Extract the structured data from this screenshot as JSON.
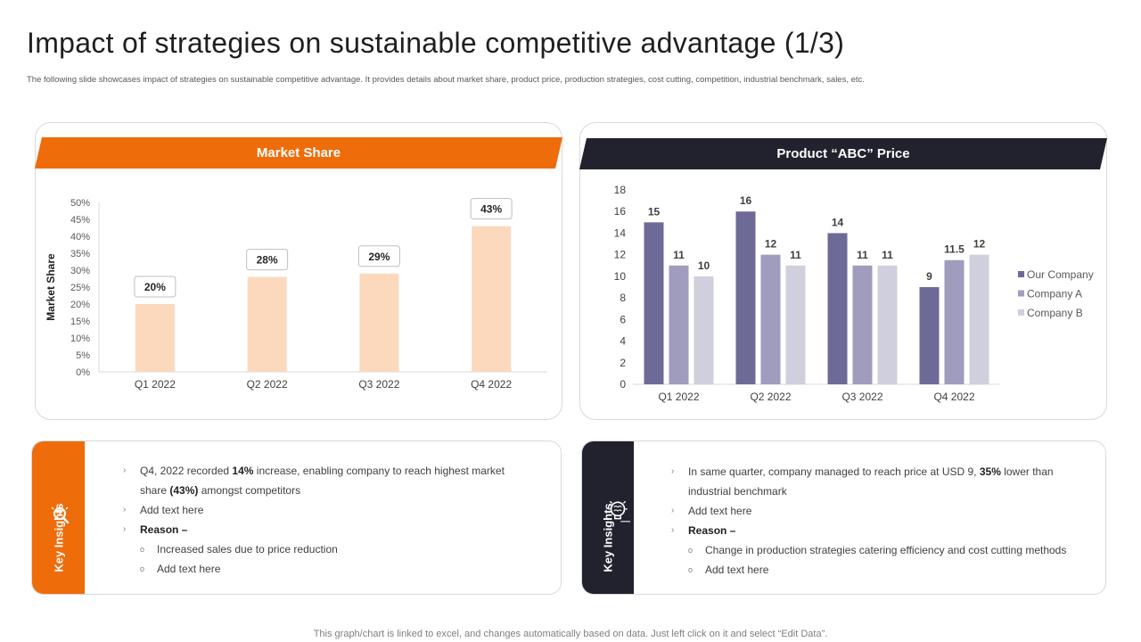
{
  "title": "Impact of strategies on sustainable competitive advantage (1/3)",
  "subtitle": "The following slide showcases impact of strategies on sustainable competitive advantage. It provides details about market share, product price, production strategies, cost cutting, competition, industrial benchmark, sales, etc.",
  "colors": {
    "orange": "#ef6c0a",
    "dark": "#22222e",
    "bar_peach": "#fcd9bd",
    "our_company": "#6e6a97",
    "company_a": "#a09cbd",
    "company_b": "#cfcfde"
  },
  "left_card": {
    "header": "Market Share"
  },
  "right_card": {
    "header": "Product “ABC” Price"
  },
  "chart_data": [
    {
      "type": "bar",
      "title": "Market Share",
      "ylabel": "Market Share",
      "xlabel": "",
      "categories": [
        "Q1 2022",
        "Q2 2022",
        "Q3 2022",
        "Q4 2022"
      ],
      "values": [
        20,
        28,
        29,
        43
      ],
      "value_labels": [
        "20%",
        "28%",
        "29%",
        "43%"
      ],
      "y_ticks": [
        "0%",
        "5%",
        "10%",
        "15%",
        "20%",
        "25%",
        "30%",
        "35%",
        "40%",
        "45%",
        "50%"
      ],
      "ylim": [
        0,
        50
      ]
    },
    {
      "type": "bar",
      "title": "Product “ABC” Price",
      "categories": [
        "Q1 2022",
        "Q2 2022",
        "Q3 2022",
        "Q4 2022"
      ],
      "series": [
        {
          "name": "Our Company",
          "values": [
            15,
            16,
            14,
            9
          ],
          "labels": [
            "15",
            "16",
            "14",
            "9"
          ]
        },
        {
          "name": "Company A",
          "values": [
            11,
            12,
            11,
            11.5
          ],
          "labels": [
            "11",
            "12",
            "11",
            "11.5"
          ]
        },
        {
          "name": "Company B",
          "values": [
            10,
            11,
            11,
            12
          ],
          "labels": [
            "10",
            "11",
            "11",
            "12"
          ]
        }
      ],
      "y_ticks": [
        "0",
        "2",
        "4",
        "6",
        "8",
        "10",
        "12",
        "14",
        "16",
        "18"
      ],
      "ylim": [
        0,
        18
      ],
      "legend_position": "right"
    }
  ],
  "insights_left": {
    "side_label": "Key Insights",
    "icon": "lightbulb-magnifier-icon",
    "b1_pre": "Q4, 2022 recorded ",
    "b1_bold1": "14%",
    "b1_mid": " increase, enabling company to reach highest market",
    "b1_line2_pre": "share ",
    "b1_bold2": "(43%)",
    "b1_post": "  amongst competitors",
    "b2": "Add text here",
    "b3": "Reason –",
    "s1": "Increased sales due to price reduction",
    "s2": "Add text here"
  },
  "insights_right": {
    "side_label": "Key Insights",
    "icon": "brain-lightbulb-icon",
    "b1_pre": "In same quarter, company managed to reach price at USD 9, ",
    "b1_bold": "35%",
    "b1_post": "  lower than",
    "b1_line2": "industrial benchmark",
    "b2": "Add text here",
    "b3": "Reason –",
    "s1": "Change in production strategies catering efficiency and cost cutting methods",
    "s2": "Add text here"
  },
  "bullets": {
    "main": "›",
    "sub": "o"
  },
  "footer": "This graph/chart is linked to excel,  and changes automatically based on data. Just left click on it and select “Edit Data”."
}
